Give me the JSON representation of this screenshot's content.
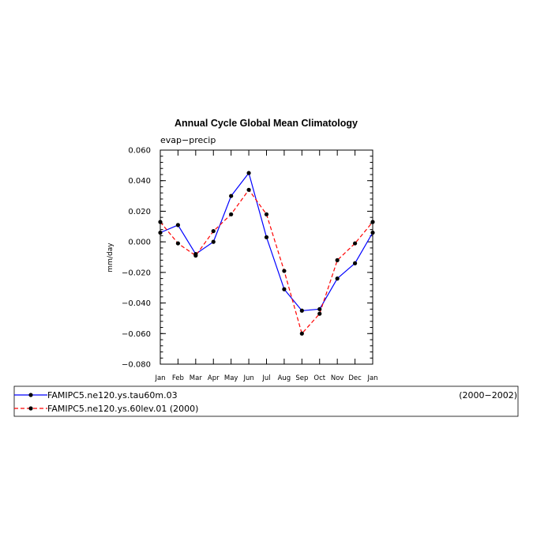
{
  "chart_data": {
    "type": "line",
    "title": "Annual Cycle Global Mean Climatology",
    "subtitle": "evap−precip",
    "ylabel": "mm/day",
    "xlabel": "",
    "categories": [
      "Jan",
      "Feb",
      "Mar",
      "Apr",
      "May",
      "Jun",
      "Jul",
      "Aug",
      "Sep",
      "Oct",
      "Nov",
      "Dec",
      "Jan"
    ],
    "ylim": [
      -0.08,
      0.06
    ],
    "yticks": [
      "0.060",
      "0.040",
      "0.020",
      "0.000",
      "−0.020",
      "−0.040",
      "−0.060",
      "−0.080"
    ],
    "ytick_values": [
      0.06,
      0.04,
      0.02,
      0.0,
      -0.02,
      -0.04,
      -0.06,
      -0.08
    ],
    "grid": false,
    "legend_position": "bottom",
    "series": [
      {
        "name": "FAMIPC5.ne120.ys.tau60m.03",
        "period": "(2000−2002)",
        "color": "#0000ff",
        "line_style": "solid",
        "values": [
          0.006,
          0.011,
          -0.008,
          0.0,
          0.03,
          0.045,
          0.003,
          -0.031,
          -0.045,
          -0.044,
          -0.024,
          -0.014,
          0.006
        ]
      },
      {
        "name": "FAMIPC5.ne120.ys.60lev.01",
        "period": "(2000)",
        "color": "#ff0000",
        "line_style": "dashed",
        "values": [
          0.013,
          -0.001,
          -0.009,
          0.007,
          0.018,
          0.034,
          0.018,
          -0.019,
          -0.06,
          -0.047,
          -0.012,
          -0.001,
          0.013
        ]
      }
    ]
  }
}
